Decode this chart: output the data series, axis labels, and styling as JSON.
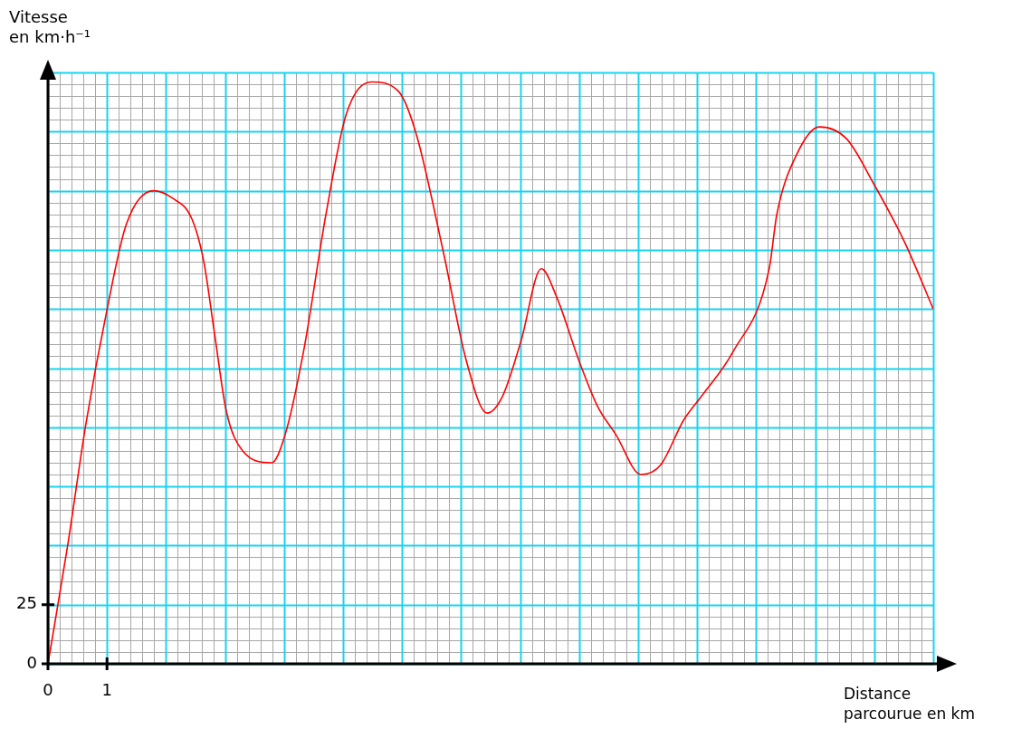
{
  "chart_data": {
    "type": "line",
    "xlabel": "Distance\nparcourue en km",
    "ylabel": "Vitesse\nen km·h⁻¹",
    "x": [
      0,
      0.34,
      0.64,
      1.01,
      1.33,
      1.79,
      2.1,
      2.44,
      2.64,
      2.82,
      3.02,
      3.3,
      3.79,
      4.02,
      4.33,
      4.71,
      5.05,
      5.48,
      5.94,
      6.24,
      6.7,
      7.09,
      7.44,
      7.7,
      8.01,
      8.36,
      8.62,
      9.0,
      9.31,
      9.62,
      10.05,
      10.38,
      10.77,
      11.07,
      11.61,
      12.22,
      12.35,
      12.68,
      13.07,
      13.53,
      13.99,
      14.52,
      15.0
    ],
    "series": [
      {
        "color": "#ff0000",
        "values": [
          0,
          51,
          101,
          151,
          186,
          200,
          197,
          188,
          170,
          140,
          107,
          90,
          85,
          97,
          132,
          190,
          232,
          246,
          242,
          224,
          174,
          128,
          106,
          113,
          136,
          167,
          155,
          128,
          109,
          97,
          80,
          84,
          103,
          113,
          132,
          167,
          190,
          215,
          227,
          222,
          203,
          178,
          150
        ]
      }
    ],
    "xlim": [
      0,
      15
    ],
    "ylim": [
      0,
      250
    ],
    "xticks": [
      0,
      1
    ],
    "yticks": [
      0,
      25
    ],
    "grid": true,
    "marker": "none",
    "line_style": "solid"
  }
}
